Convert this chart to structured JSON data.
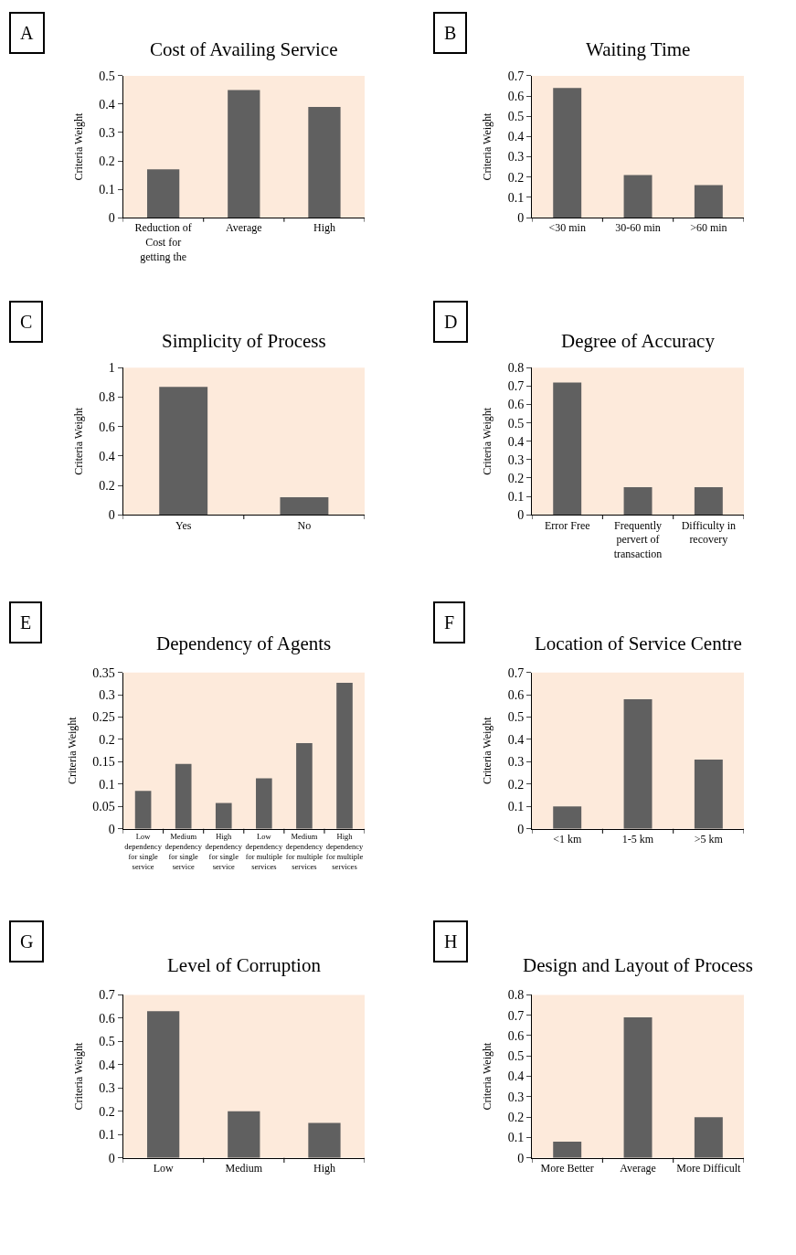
{
  "chart_data": [
    {
      "type": "bar",
      "title": "Cost of Availing Service",
      "ylabel": "Criteria Weight",
      "annotations": [
        "A"
      ],
      "categories": [
        "Reduction of Cost for getting the",
        "Average",
        "High"
      ],
      "values": [
        0.17,
        0.45,
        0.39
      ],
      "color": "#606060",
      "ylim": [
        0,
        0.5
      ],
      "yticks": [
        0,
        0.1,
        0.2,
        0.3,
        0.4,
        0.5
      ]
    },
    {
      "type": "bar",
      "title": "Waiting Time",
      "ylabel": "Criteria Weight",
      "annotations": [
        "B"
      ],
      "categories": [
        "<30 min",
        "30-60 min",
        ">60 min"
      ],
      "values": [
        0.64,
        0.21,
        0.16
      ],
      "color": "#606060",
      "ylim": [
        0,
        0.7
      ],
      "yticks": [
        0,
        0.1,
        0.2,
        0.3,
        0.4,
        0.5,
        0.6,
        0.7
      ]
    },
    {
      "type": "bar",
      "title": "Simplicity of Process",
      "ylabel": "Criteria Weight",
      "annotations": [
        "C"
      ],
      "categories": [
        "Yes",
        "No"
      ],
      "values": [
        0.87,
        0.12
      ],
      "color": "#606060",
      "ylim": [
        0,
        1
      ],
      "yticks": [
        0,
        0.2,
        0.4,
        0.6,
        0.8,
        1
      ]
    },
    {
      "type": "bar",
      "title": "Degree of Accuracy",
      "ylabel": "Criteria Weight",
      "annotations": [
        "D"
      ],
      "categories": [
        "Error Free",
        "Frequently pervert of transaction",
        "Difficulty in recovery"
      ],
      "values": [
        0.72,
        0.15,
        0.15
      ],
      "color": "#606060",
      "ylim": [
        0,
        0.8
      ],
      "yticks": [
        0,
        0.1,
        0.2,
        0.3,
        0.4,
        0.5,
        0.6,
        0.7,
        0.8
      ]
    },
    {
      "type": "bar",
      "title": "Dependency of Agents",
      "ylabel": "Criteria Weight",
      "annotations": [
        "E"
      ],
      "categories": [
        "Low dependency for single service",
        "Medium dependency for single service",
        "High dependency for single service",
        "Low dependency for multiple services",
        "Medium dependency for multiple services",
        "High dependency for multiple services"
      ],
      "values": [
        0.085,
        0.145,
        0.058,
        0.113,
        0.192,
        0.327
      ],
      "color": "#606060",
      "ylim": [
        0,
        0.35
      ],
      "yticks": [
        0,
        0.05,
        0.1,
        0.15,
        0.2,
        0.25,
        0.3,
        0.35
      ]
    },
    {
      "type": "bar",
      "title": "Location of Service Centre",
      "ylabel": "Criteria Weight",
      "annotations": [
        "F"
      ],
      "categories": [
        "<1 km",
        "1-5 km",
        ">5 km"
      ],
      "values": [
        0.1,
        0.58,
        0.31
      ],
      "color": "#606060",
      "ylim": [
        0,
        0.7
      ],
      "yticks": [
        0,
        0.1,
        0.2,
        0.3,
        0.4,
        0.5,
        0.6,
        0.7
      ]
    },
    {
      "type": "bar",
      "title": "Level of Corruption",
      "ylabel": "Criteria Weight",
      "annotations": [
        "G"
      ],
      "categories": [
        "Low",
        "Medium",
        "High"
      ],
      "values": [
        0.63,
        0.2,
        0.15
      ],
      "color": "#606060",
      "ylim": [
        0,
        0.7
      ],
      "yticks": [
        0,
        0.1,
        0.2,
        0.3,
        0.4,
        0.5,
        0.6,
        0.7
      ]
    },
    {
      "type": "bar",
      "title": "Design and Layout of Process",
      "ylabel": "Criteria Weight",
      "annotations": [
        "H"
      ],
      "categories": [
        "More Better",
        "Average",
        "More Difficult"
      ],
      "values": [
        0.08,
        0.69,
        0.2
      ],
      "color": "#606060",
      "ylim": [
        0,
        0.8
      ],
      "yticks": [
        0,
        0.1,
        0.2,
        0.3,
        0.4,
        0.5,
        0.6,
        0.7,
        0.8
      ]
    }
  ]
}
